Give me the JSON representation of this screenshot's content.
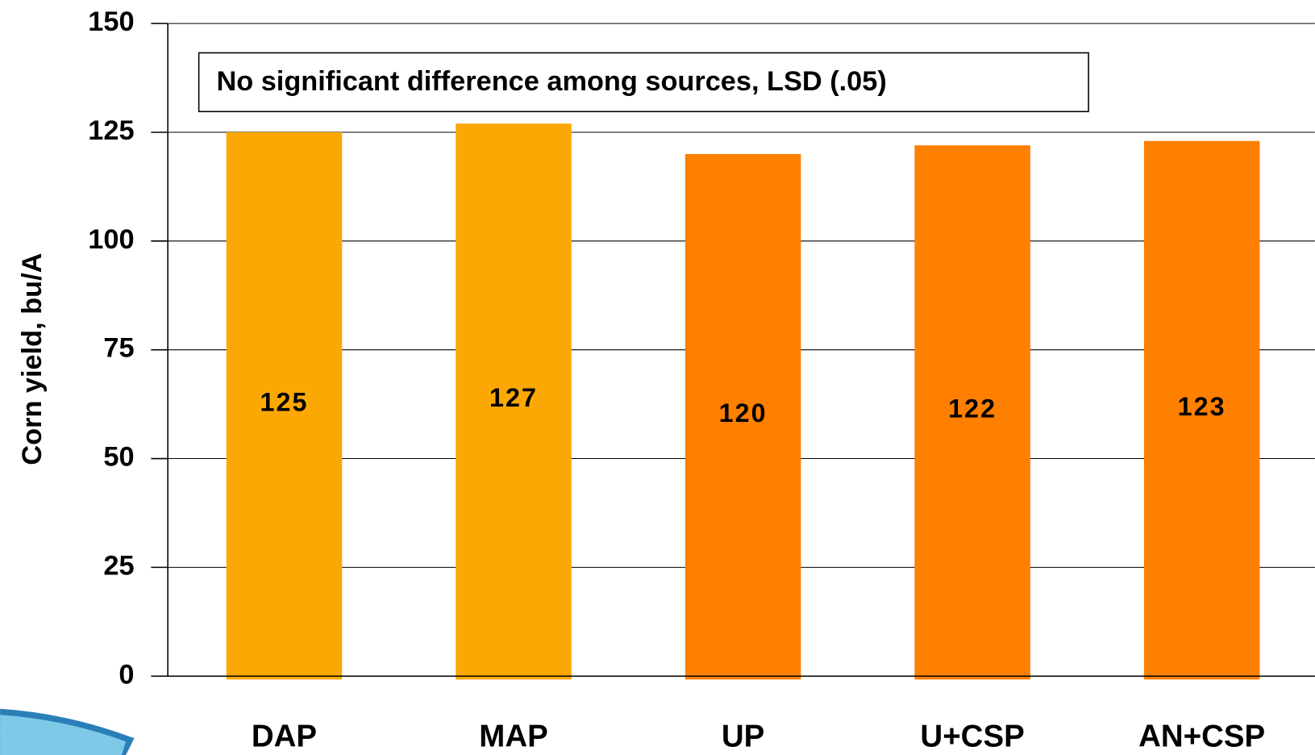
{
  "chart_data": {
    "type": "bar",
    "annotation": "No significant difference among sources, LSD (.05)",
    "y_label": "Corn yield, bu/A",
    "categories": [
      "DAP",
      "MAP",
      "UP",
      "U+CSP",
      "AN+CSP"
    ],
    "values": [
      125,
      127,
      120,
      122,
      123
    ],
    "colors": [
      "#FCA804",
      "#FCA804",
      "#FF7F00",
      "#FF7F00",
      "#FF7F00"
    ],
    "ylim": [
      0,
      150
    ],
    "yticks": [
      0,
      25,
      50,
      75,
      100,
      125,
      150
    ],
    "grid": true
  }
}
